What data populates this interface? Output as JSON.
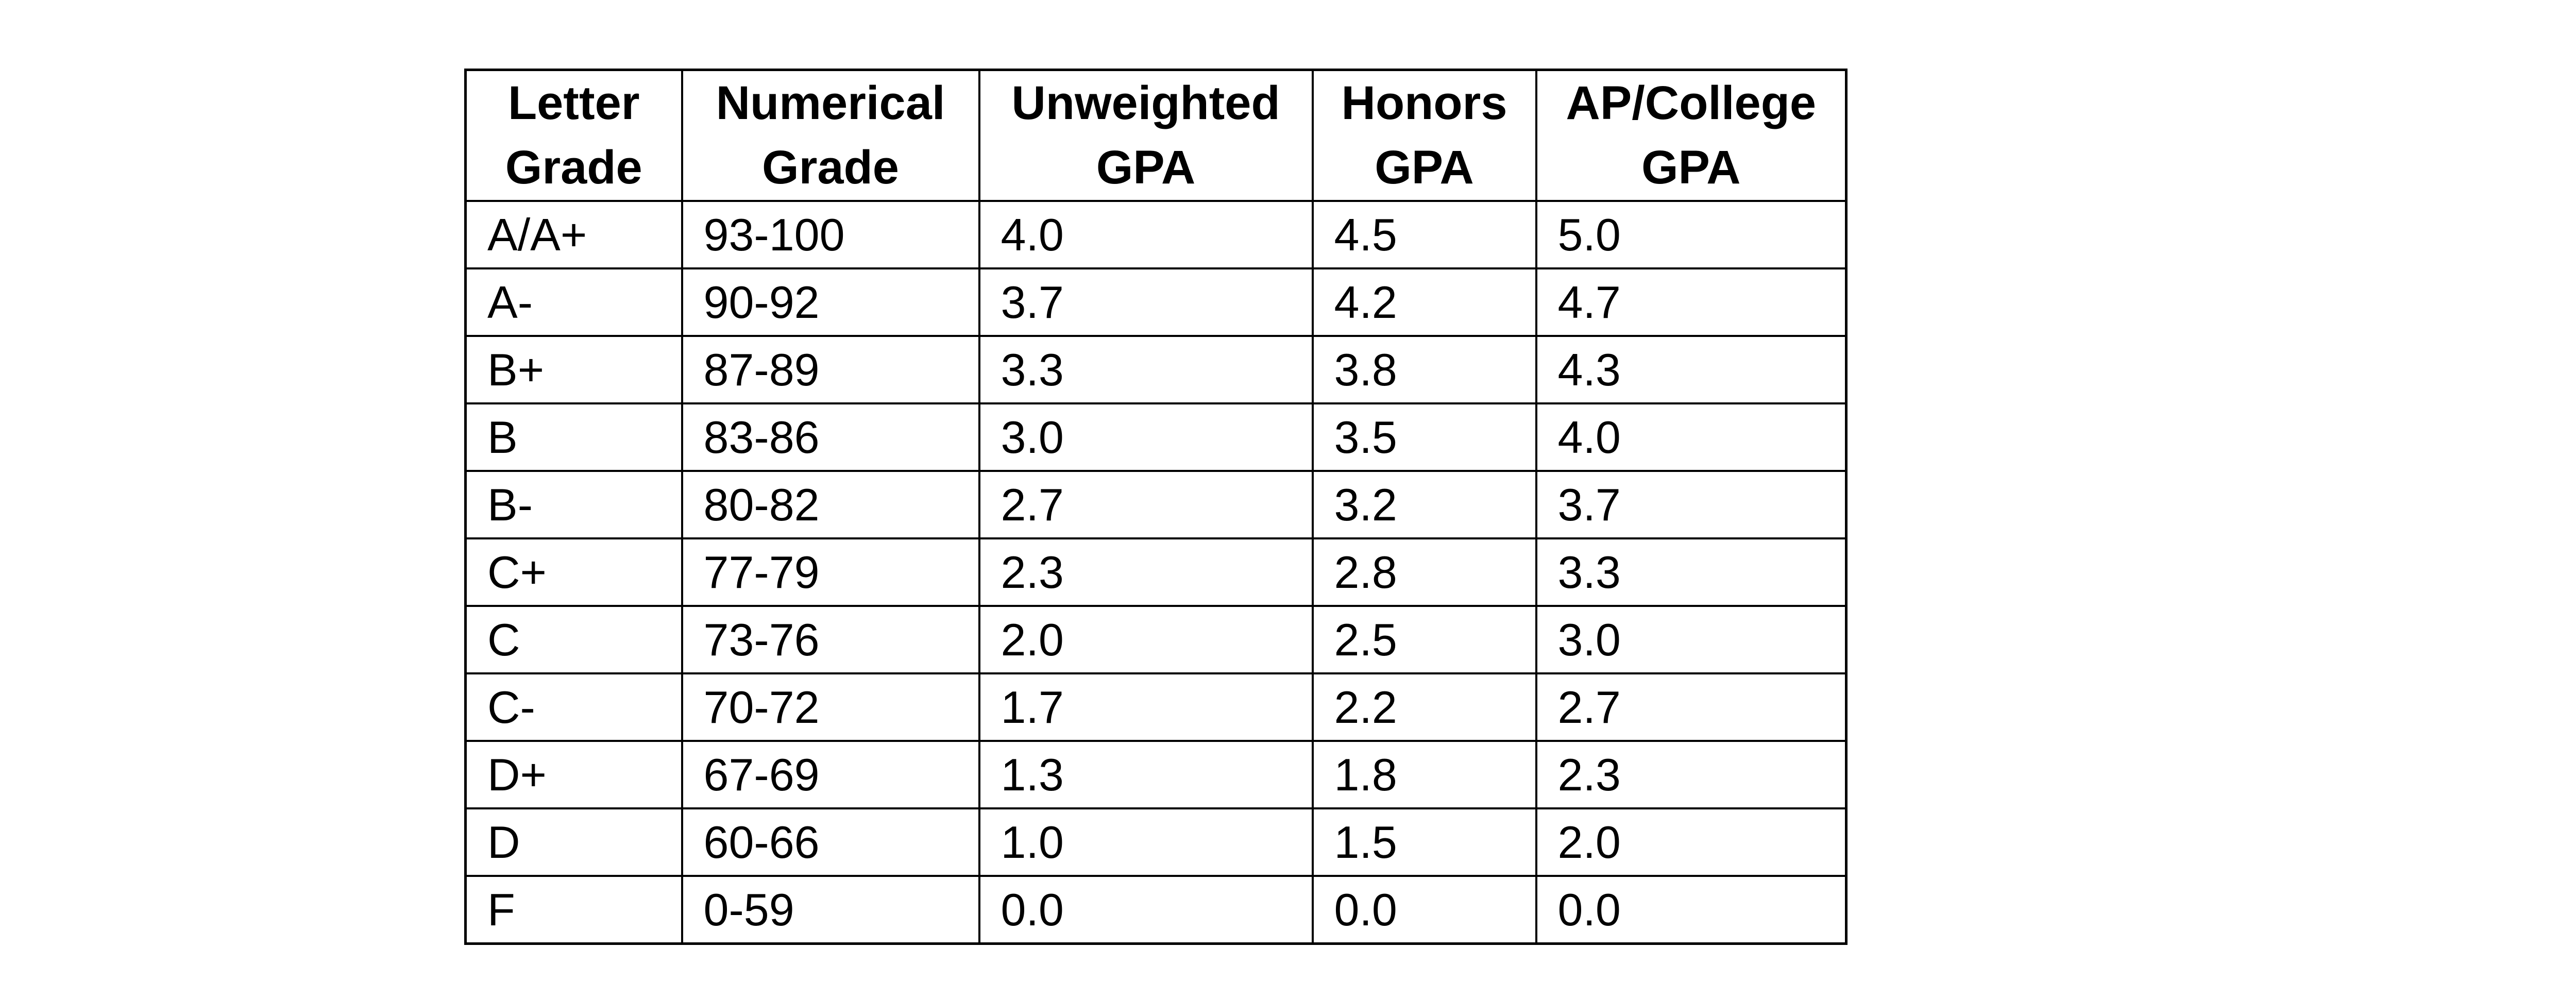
{
  "page": {
    "background_color": "#ffffff"
  },
  "table": {
    "border_color": "#000000",
    "text_color": "#000000",
    "fields": [
      "letter",
      "numerical",
      "unweighted",
      "honors",
      "ap"
    ],
    "columns": [
      {
        "line1": "Letter",
        "line2": "Grade"
      },
      {
        "line1": "Numerical",
        "line2": "Grade"
      },
      {
        "line1": "Unweighted",
        "line2": "GPA"
      },
      {
        "line1": "Honors",
        "line2": "GPA"
      },
      {
        "line1": "AP/College",
        "line2": "GPA"
      }
    ],
    "rows": [
      {
        "letter": "A/A+",
        "numerical": "93-100",
        "unweighted": "4.0",
        "honors": "4.5",
        "ap": "5.0"
      },
      {
        "letter": "A-",
        "numerical": "90-92",
        "unweighted": "3.7",
        "honors": "4.2",
        "ap": "4.7"
      },
      {
        "letter": "B+",
        "numerical": "87-89",
        "unweighted": "3.3",
        "honors": "3.8",
        "ap": "4.3"
      },
      {
        "letter": "B",
        "numerical": "83-86",
        "unweighted": "3.0",
        "honors": "3.5",
        "ap": "4.0"
      },
      {
        "letter": "B-",
        "numerical": "80-82",
        "unweighted": "2.7",
        "honors": "3.2",
        "ap": "3.7"
      },
      {
        "letter": "C+",
        "numerical": "77-79",
        "unweighted": "2.3",
        "honors": "2.8",
        "ap": "3.3"
      },
      {
        "letter": "C",
        "numerical": "73-76",
        "unweighted": "2.0",
        "honors": "2.5",
        "ap": "3.0"
      },
      {
        "letter": "C-",
        "numerical": "70-72",
        "unweighted": "1.7",
        "honors": "2.2",
        "ap": "2.7"
      },
      {
        "letter": "D+",
        "numerical": "67-69",
        "unweighted": "1.3",
        "honors": "1.8",
        "ap": "2.3"
      },
      {
        "letter": "D",
        "numerical": "60-66",
        "unweighted": "1.0",
        "honors": "1.5",
        "ap": "2.0"
      },
      {
        "letter": "F",
        "numerical": "0-59",
        "unweighted": "0.0",
        "honors": "0.0",
        "ap": "0.0"
      }
    ]
  }
}
